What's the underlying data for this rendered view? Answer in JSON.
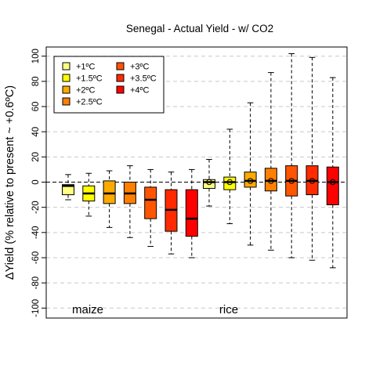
{
  "chart_data": {
    "type": "boxplot",
    "title": "Senegal - Actual Yield - w/ CO2",
    "ylabel": "ΔYield (% relative to present ~ +0.6ºC)",
    "ylim": [
      -105,
      105
    ],
    "yticks": [
      -100,
      -80,
      -60,
      -40,
      -20,
      0,
      20,
      40,
      60,
      80,
      100
    ],
    "ytick_labels": [
      "-100",
      "-80",
      "-60",
      "-40",
      "-20",
      "0",
      "20",
      "40",
      "60",
      "80",
      "100"
    ],
    "grid": "horizontal dashed",
    "reference_line": 0,
    "legend": {
      "placement": "top-left",
      "entries": [
        {
          "label": "+1ºC",
          "color": "#ffff80"
        },
        {
          "label": "+1.5ºC",
          "color": "#ffff00"
        },
        {
          "label": "+2ºC",
          "color": "#ffaa00"
        },
        {
          "label": "+2.5ºC",
          "color": "#ff8000"
        },
        {
          "label": "+3ºC",
          "color": "#ff5500"
        },
        {
          "label": "+3.5ºC",
          "color": "#ff2a00"
        },
        {
          "label": "+4ºC",
          "color": "#ff0000"
        }
      ]
    },
    "groups": [
      {
        "label": "maize",
        "boxes": [
          {
            "scenario": "+1ºC",
            "whisker_low": -14,
            "q1": -10,
            "median": -3,
            "q3": -2,
            "whisker_high": 6,
            "color": "#ffff80"
          },
          {
            "scenario": "+1.5ºC",
            "whisker_low": -27,
            "q1": -15,
            "median": -9,
            "q3": -3,
            "whisker_high": 7,
            "color": "#ffff00"
          },
          {
            "scenario": "+2ºC",
            "whisker_low": -36,
            "q1": -17,
            "median": -9,
            "q3": 1,
            "whisker_high": 9,
            "color": "#ffaa00"
          },
          {
            "scenario": "+2.5ºC",
            "whisker_low": -44,
            "q1": -17,
            "median": -9,
            "q3": 0,
            "whisker_high": 13,
            "color": "#ff8000"
          },
          {
            "scenario": "+3ºC",
            "whisker_low": -51,
            "q1": -29,
            "median": -14,
            "q3": -4,
            "whisker_high": 10,
            "color": "#ff5500"
          },
          {
            "scenario": "+3.5ºC",
            "whisker_low": -57,
            "q1": -39,
            "median": -22,
            "q3": -6,
            "whisker_high": 8,
            "color": "#ff2a00"
          },
          {
            "scenario": "+4ºC",
            "whisker_low": -60,
            "q1": -43,
            "median": -29,
            "q3": -6,
            "whisker_high": 10,
            "color": "#ff0000"
          }
        ]
      },
      {
        "label": "rice",
        "boxes": [
          {
            "scenario": "+1ºC",
            "whisker_low": -19,
            "q1": -5,
            "median": 0,
            "q3": 2,
            "whisker_high": 18,
            "mean": 0,
            "color": "#ffff80"
          },
          {
            "scenario": "+1.5ºC",
            "whisker_low": -33,
            "q1": -6,
            "median": 0,
            "q3": 4,
            "whisker_high": 42,
            "mean": 0,
            "color": "#ffff00"
          },
          {
            "scenario": "+2ºC",
            "whisker_low": -50,
            "q1": -4,
            "median": 1,
            "q3": 8,
            "whisker_high": 63,
            "mean": 1,
            "color": "#ffaa00"
          },
          {
            "scenario": "+2.5ºC",
            "whisker_low": -54,
            "q1": -7,
            "median": 1,
            "q3": 11,
            "whisker_high": 87,
            "mean": 1,
            "color": "#ff8000"
          },
          {
            "scenario": "+3ºC",
            "whisker_low": -60,
            "q1": -11,
            "median": 1,
            "q3": 13,
            "whisker_high": 102,
            "mean": 1,
            "color": "#ff5500"
          },
          {
            "scenario": "+3.5ºC",
            "whisker_low": -62,
            "q1": -10,
            "median": 1,
            "q3": 13,
            "whisker_high": 99,
            "mean": 1,
            "color": "#ff2a00"
          },
          {
            "scenario": "+4ºC",
            "whisker_low": -68,
            "q1": -18,
            "median": 0,
            "q3": 12,
            "whisker_high": 83,
            "mean": 0,
            "color": "#ff0000"
          }
        ]
      }
    ]
  }
}
